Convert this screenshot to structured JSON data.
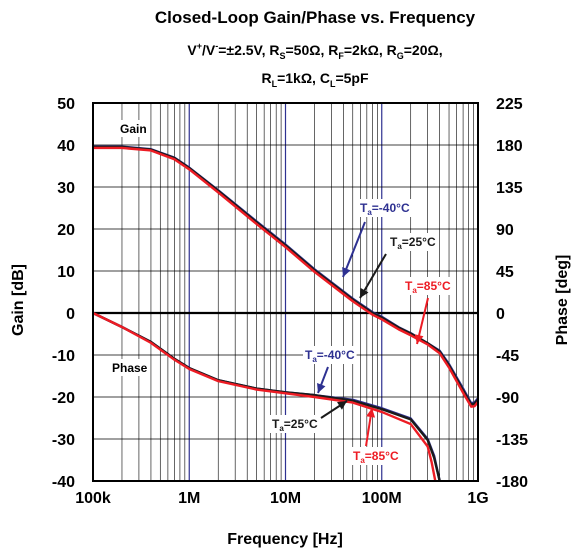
{
  "chart_data": {
    "type": "line",
    "title": "Closed-Loop Gain/Phase vs. Frequency",
    "subtitle_line1": "V⁺/V⁻=±2.5V, R_S=50Ω, R_F=2kΩ, R_G=20Ω,",
    "subtitle_line2": "R_L=1kΩ, C_L=5pF",
    "xlabel": "Frequency [Hz]",
    "ylabel_left": "Gain [dB]",
    "ylabel_right": "Phase [deg]",
    "x_scale": "log",
    "xlim": [
      100000,
      1000000000
    ],
    "ylim_left": [
      -40,
      50
    ],
    "ylim_right": [
      -180,
      225
    ],
    "x_tick_labels": [
      "100k",
      "1M",
      "10M",
      "100M",
      "1G"
    ],
    "y_left_ticks": [
      "50",
      "40",
      "30",
      "20",
      "10",
      "0",
      "-10",
      "-20",
      "-30",
      "-40"
    ],
    "y_right_ticks": [
      "225",
      "180",
      "135",
      "90",
      "45",
      "0",
      "-45",
      "-90",
      "-135",
      "-180"
    ],
    "grid": true,
    "colors": {
      "t_minus40": "#2e3191",
      "t_25": "#1a1a1a",
      "t_85": "#ed1c24",
      "frame": "#000000",
      "grid": "#000000",
      "decade": "#2e3191"
    },
    "series": [
      {
        "name": "Gain Ta=-40°C",
        "axis": "left",
        "color": "#2e3191",
        "points": [
          [
            100000,
            39.6
          ],
          [
            200000,
            39.6
          ],
          [
            400000,
            39.0
          ],
          [
            700000,
            37.0
          ],
          [
            1000000,
            34.6
          ],
          [
            2000000,
            29.2
          ],
          [
            5000000,
            21.8
          ],
          [
            10000000,
            16.3
          ],
          [
            20000000,
            10.4
          ],
          [
            50000000,
            3.4
          ],
          [
            80000000,
            0.2
          ],
          [
            100000000,
            -0.9
          ],
          [
            150000000,
            -3.4
          ],
          [
            200000000,
            -4.8
          ],
          [
            300000000,
            -7.2
          ],
          [
            400000000,
            -9.0
          ],
          [
            500000000,
            -12.2
          ],
          [
            700000000,
            -18.0
          ],
          [
            850000000,
            -21.5
          ],
          [
            920000000,
            -21.3
          ],
          [
            1000000000,
            -20.3
          ]
        ]
      },
      {
        "name": "Gain Ta=25°C",
        "axis": "left",
        "color": "#1a1a1a",
        "points": [
          [
            100000,
            39.5
          ],
          [
            200000,
            39.5
          ],
          [
            400000,
            38.9
          ],
          [
            700000,
            36.9
          ],
          [
            1000000,
            34.5
          ],
          [
            2000000,
            29.1
          ],
          [
            5000000,
            21.6
          ],
          [
            10000000,
            16.1
          ],
          [
            20000000,
            10.2
          ],
          [
            50000000,
            3.2
          ],
          [
            80000000,
            0.0
          ],
          [
            100000000,
            -1.1
          ],
          [
            150000000,
            -3.5
          ],
          [
            200000000,
            -4.9
          ],
          [
            300000000,
            -7.2
          ],
          [
            400000000,
            -9.2
          ],
          [
            500000000,
            -12.5
          ],
          [
            700000000,
            -18.4
          ],
          [
            850000000,
            -21.8
          ],
          [
            920000000,
            -21.6
          ],
          [
            1000000000,
            -20.6
          ]
        ]
      },
      {
        "name": "Gain Ta=85°C",
        "axis": "left",
        "color": "#ed1c24",
        "points": [
          [
            100000,
            39.3
          ],
          [
            200000,
            39.3
          ],
          [
            400000,
            38.7
          ],
          [
            700000,
            36.6
          ],
          [
            1000000,
            34.2
          ],
          [
            2000000,
            28.7
          ],
          [
            5000000,
            21.2
          ],
          [
            10000000,
            15.7
          ],
          [
            20000000,
            9.8
          ],
          [
            50000000,
            2.8
          ],
          [
            80000000,
            -0.4
          ],
          [
            100000000,
            -1.5
          ],
          [
            150000000,
            -3.9
          ],
          [
            200000000,
            -5.3
          ],
          [
            300000000,
            -7.5
          ],
          [
            400000000,
            -9.6
          ],
          [
            500000000,
            -13.0
          ],
          [
            700000000,
            -19.0
          ],
          [
            850000000,
            -22.3
          ],
          [
            920000000,
            -22.2
          ],
          [
            1000000000,
            -21.2
          ]
        ]
      },
      {
        "name": "Phase Ta=-40°C",
        "axis": "right",
        "color": "#2e3191",
        "points": [
          [
            100000,
            0
          ],
          [
            200000,
            -15
          ],
          [
            400000,
            -31
          ],
          [
            700000,
            -49
          ],
          [
            1000000,
            -59
          ],
          [
            2000000,
            -72
          ],
          [
            5000000,
            -81
          ],
          [
            10000000,
            -85
          ],
          [
            20000000,
            -88
          ],
          [
            50000000,
            -93
          ],
          [
            100000000,
            -102
          ],
          [
            200000000,
            -113
          ],
          [
            300000000,
            -135
          ],
          [
            350000000,
            -153
          ],
          [
            400000000,
            -180
          ]
        ]
      },
      {
        "name": "Phase Ta=25°C",
        "axis": "right",
        "color": "#1a1a1a",
        "points": [
          [
            100000,
            0
          ],
          [
            200000,
            -15
          ],
          [
            400000,
            -31
          ],
          [
            700000,
            -49
          ],
          [
            1000000,
            -59
          ],
          [
            2000000,
            -72
          ],
          [
            5000000,
            -81
          ],
          [
            10000000,
            -85
          ],
          [
            20000000,
            -88
          ],
          [
            50000000,
            -94
          ],
          [
            100000000,
            -103
          ],
          [
            200000000,
            -114
          ],
          [
            300000000,
            -136
          ],
          [
            350000000,
            -155
          ],
          [
            400000000,
            -180
          ]
        ]
      },
      {
        "name": "Phase Ta=85°C",
        "axis": "right",
        "color": "#ed1c24",
        "points": [
          [
            100000,
            0
          ],
          [
            200000,
            -15
          ],
          [
            400000,
            -32
          ],
          [
            700000,
            -50
          ],
          [
            1000000,
            -60
          ],
          [
            2000000,
            -73
          ],
          [
            5000000,
            -82
          ],
          [
            10000000,
            -86
          ],
          [
            20000000,
            -90
          ],
          [
            50000000,
            -96
          ],
          [
            100000000,
            -106
          ],
          [
            200000000,
            -119
          ],
          [
            300000000,
            -143
          ],
          [
            330000000,
            -160
          ],
          [
            360000000,
            -180
          ]
        ]
      }
    ],
    "annotations": {
      "gain_label": "Gain",
      "phase_label": "Phase",
      "gain_m40": {
        "prefix": "T",
        "sub": "a",
        "suffix": "=-40°C"
      },
      "gain_25": {
        "prefix": "T",
        "sub": "a",
        "suffix": "=25°C"
      },
      "gain_85": {
        "prefix": "T",
        "sub": "a",
        "suffix": "=85°C"
      },
      "phase_m40": {
        "prefix": "T",
        "sub": "a",
        "suffix": "=-40°C"
      },
      "phase_25": {
        "prefix": "T",
        "sub": "a",
        "suffix": "=25°C"
      },
      "phase_85": {
        "prefix": "T",
        "sub": "a",
        "suffix": "=85°C"
      }
    }
  }
}
